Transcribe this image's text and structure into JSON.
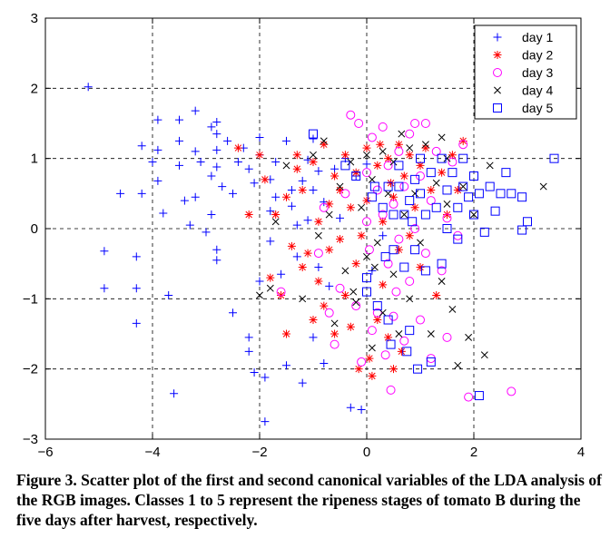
{
  "chart_data": {
    "type": "scatter",
    "title": "",
    "xlabel": "",
    "ylabel": "",
    "xlim": [
      -6,
      4
    ],
    "ylim": [
      -3,
      3
    ],
    "xticks": [
      -6,
      -4,
      -2,
      0,
      2,
      4
    ],
    "yticks": [
      -3,
      -2,
      -1,
      0,
      1,
      2,
      3
    ],
    "xtick_labels": [
      "−6",
      "−4",
      "−2",
      "0",
      "2",
      "4"
    ],
    "ytick_labels": [
      "−3",
      "−2",
      "−1",
      "0",
      "1",
      "2",
      "3"
    ],
    "grid": true,
    "legend_position": "top-right",
    "series": [
      {
        "name": "day 1",
        "marker": "plus",
        "color": "#0000ff",
        "points": [
          [
            -5.2,
            2.02
          ],
          [
            -4.9,
            -0.32
          ],
          [
            -4.9,
            -0.85
          ],
          [
            -4.6,
            0.5
          ],
          [
            -4.3,
            -0.4
          ],
          [
            -4.3,
            -0.85
          ],
          [
            -4.3,
            -1.35
          ],
          [
            -4.2,
            0.5
          ],
          [
            -4.2,
            1.18
          ],
          [
            -4.0,
            0.95
          ],
          [
            -3.9,
            0.68
          ],
          [
            -3.9,
            1.12
          ],
          [
            -3.9,
            1.55
          ],
          [
            -3.8,
            0.22
          ],
          [
            -3.7,
            -0.95
          ],
          [
            -3.6,
            -2.35
          ],
          [
            -3.5,
            1.55
          ],
          [
            -3.5,
            1.25
          ],
          [
            -3.5,
            0.9
          ],
          [
            -3.4,
            0.4
          ],
          [
            -3.3,
            0.05
          ],
          [
            -3.2,
            0.45
          ],
          [
            -3.2,
            1.1
          ],
          [
            -3.2,
            1.68
          ],
          [
            -3.1,
            0.95
          ],
          [
            -3.0,
            -0.05
          ],
          [
            -2.9,
            0.75
          ],
          [
            -2.9,
            1.45
          ],
          [
            -2.9,
            0.2
          ],
          [
            -2.8,
            -0.3
          ],
          [
            -2.8,
            -0.45
          ],
          [
            -2.8,
            1.12
          ],
          [
            -2.8,
            0.88
          ],
          [
            -2.8,
            1.52
          ],
          [
            -2.8,
            1.35
          ],
          [
            -2.7,
            0.6
          ],
          [
            -2.6,
            1.25
          ],
          [
            -2.5,
            -1.2
          ],
          [
            -2.5,
            0.5
          ],
          [
            -2.4,
            0.95
          ],
          [
            -2.3,
            1.15
          ],
          [
            -2.2,
            -1.55
          ],
          [
            -2.2,
            -1.75
          ],
          [
            -2.2,
            0.85
          ],
          [
            -2.1,
            -2.05
          ],
          [
            -2.1,
            0.65
          ],
          [
            -2.0,
            1.05
          ],
          [
            -2.0,
            1.3
          ],
          [
            -2.0,
            -0.75
          ],
          [
            -1.9,
            -2.12
          ],
          [
            -1.9,
            -2.75
          ],
          [
            -1.8,
            0.7
          ],
          [
            -1.8,
            0.25
          ],
          [
            -1.8,
            -0.18
          ],
          [
            -1.7,
            0.95
          ],
          [
            -1.7,
            0.45
          ],
          [
            -1.6,
            -0.65
          ],
          [
            -1.5,
            -1.95
          ],
          [
            -1.5,
            1.25
          ],
          [
            -1.4,
            0.32
          ],
          [
            -1.4,
            0.55
          ],
          [
            -1.3,
            -0.4
          ],
          [
            -1.3,
            0.05
          ],
          [
            -1.2,
            -2.2
          ],
          [
            -1.2,
            0.68
          ],
          [
            -1.1,
            0.98
          ],
          [
            -1.1,
            0.12
          ],
          [
            -1.0,
            -1.55
          ],
          [
            -1.0,
            0.55
          ],
          [
            -1.0,
            1.28
          ],
          [
            -0.9,
            0.82
          ],
          [
            -0.9,
            -0.55
          ],
          [
            -0.8,
            -1.92
          ],
          [
            -0.8,
            0.38
          ],
          [
            -0.7,
            -0.82
          ],
          [
            -0.6,
            0.85
          ],
          [
            -0.5,
            0.15
          ],
          [
            -0.4,
            1.0
          ],
          [
            -0.3,
            -2.55
          ],
          [
            -0.2,
            0.75
          ],
          [
            -0.1,
            -2.58
          ],
          [
            0.0,
            0.92
          ],
          [
            0.1,
            -0.6
          ],
          [
            0.3,
            -0.1
          ]
        ]
      },
      {
        "name": "day 2",
        "marker": "star",
        "color": "#ff0000",
        "points": [
          [
            -2.4,
            1.15
          ],
          [
            -2.2,
            0.2
          ],
          [
            -2.0,
            1.05
          ],
          [
            -1.9,
            0.7
          ],
          [
            -1.8,
            -0.7
          ],
          [
            -1.7,
            0.2
          ],
          [
            -1.6,
            -0.95
          ],
          [
            -1.5,
            0.45
          ],
          [
            -1.5,
            -1.5
          ],
          [
            -1.4,
            -0.25
          ],
          [
            -1.3,
            0.85
          ],
          [
            -1.3,
            1.05
          ],
          [
            -1.2,
            -0.55
          ],
          [
            -1.2,
            0.55
          ],
          [
            -1.1,
            -0.35
          ],
          [
            -1.0,
            -1.3
          ],
          [
            -1.0,
            0.95
          ],
          [
            -0.9,
            0.1
          ],
          [
            -0.9,
            -0.75
          ],
          [
            -0.8,
            1.2
          ],
          [
            -0.8,
            -1.1
          ],
          [
            -0.7,
            0.35
          ],
          [
            -0.7,
            -0.3
          ],
          [
            -0.6,
            0.75
          ],
          [
            -0.6,
            -1.5
          ],
          [
            -0.5,
            -0.15
          ],
          [
            -0.5,
            0.55
          ],
          [
            -0.4,
            1.05
          ],
          [
            -0.4,
            -0.95
          ],
          [
            -0.3,
            0.3
          ],
          [
            -0.3,
            -1.4
          ],
          [
            -0.2,
            0.8
          ],
          [
            -0.2,
            -0.5
          ],
          [
            -0.1,
            -0.1
          ],
          [
            0.0,
            1.15
          ],
          [
            0.0,
            0.4
          ],
          [
            0.05,
            -1.85
          ],
          [
            0.1,
            -2.1
          ],
          [
            0.2,
            0.9
          ],
          [
            0.2,
            -1.3
          ],
          [
            0.3,
            0.1
          ],
          [
            0.3,
            -0.8
          ],
          [
            0.4,
            1.0
          ],
          [
            0.4,
            -1.55
          ],
          [
            0.5,
            0.45
          ],
          [
            0.5,
            -2.0
          ],
          [
            0.6,
            1.2
          ],
          [
            0.6,
            -0.3
          ],
          [
            0.7,
            0.75
          ],
          [
            0.8,
            -0.1
          ],
          [
            0.8,
            1.05
          ],
          [
            0.9,
            0.3
          ],
          [
            1.0,
            -0.55
          ],
          [
            1.0,
            0.9
          ],
          [
            1.1,
            1.15
          ],
          [
            1.2,
            0.55
          ],
          [
            1.3,
            -0.95
          ],
          [
            1.4,
            0.8
          ],
          [
            1.5,
            0.2
          ],
          [
            1.6,
            1.05
          ],
          [
            1.7,
            0.55
          ],
          [
            1.8,
            1.25
          ],
          [
            -0.15,
            -2.0
          ],
          [
            0.25,
            1.2
          ],
          [
            0.45,
            0.65
          ],
          [
            0.65,
            -1.75
          ]
        ]
      },
      {
        "name": "day 3",
        "marker": "circle",
        "color": "#ff00ff",
        "points": [
          [
            -1.6,
            -0.9
          ],
          [
            -0.9,
            -0.35
          ],
          [
            -0.8,
            0.3
          ],
          [
            -0.7,
            -1.2
          ],
          [
            -0.6,
            -1.65
          ],
          [
            -0.5,
            -0.85
          ],
          [
            -0.4,
            0.5
          ],
          [
            -0.3,
            1.62
          ],
          [
            -0.2,
            -1.1
          ],
          [
            -0.1,
            -1.9
          ],
          [
            0.0,
            0.1
          ],
          [
            0.0,
            0.8
          ],
          [
            0.05,
            -0.3
          ],
          [
            0.1,
            1.3
          ],
          [
            0.1,
            -1.45
          ],
          [
            0.2,
            0.55
          ],
          [
            0.2,
            -1.2
          ],
          [
            0.3,
            0.2
          ],
          [
            0.3,
            1.45
          ],
          [
            0.35,
            -1.8
          ],
          [
            0.4,
            -0.5
          ],
          [
            0.4,
            0.9
          ],
          [
            0.45,
            -2.3
          ],
          [
            0.5,
            0.35
          ],
          [
            0.5,
            -1.25
          ],
          [
            0.6,
            1.1
          ],
          [
            0.6,
            -0.15
          ],
          [
            0.7,
            0.6
          ],
          [
            0.7,
            -1.6
          ],
          [
            0.8,
            1.35
          ],
          [
            0.8,
            -0.75
          ],
          [
            0.9,
            0.0
          ],
          [
            0.9,
            1.5
          ],
          [
            1.0,
            -1.3
          ],
          [
            1.0,
            0.75
          ],
          [
            1.1,
            1.5
          ],
          [
            1.1,
            -0.35
          ],
          [
            1.2,
            0.4
          ],
          [
            1.2,
            -1.85
          ],
          [
            1.3,
            1.1
          ],
          [
            1.4,
            -0.6
          ],
          [
            1.5,
            0.15
          ],
          [
            1.5,
            -1.55
          ],
          [
            1.6,
            0.95
          ],
          [
            1.7,
            -0.1
          ],
          [
            1.8,
            1.2
          ],
          [
            1.9,
            -2.4
          ],
          [
            2.7,
            -2.32
          ],
          [
            -0.15,
            1.5
          ],
          [
            0.55,
            -0.9
          ]
        ]
      },
      {
        "name": "day 4",
        "marker": "x",
        "color": "#000000",
        "points": [
          [
            -2.0,
            -0.95
          ],
          [
            -1.8,
            -0.85
          ],
          [
            -1.7,
            0.1
          ],
          [
            -1.5,
            0.9
          ],
          [
            -1.2,
            -1.0
          ],
          [
            -1.0,
            1.05
          ],
          [
            -0.9,
            -0.1
          ],
          [
            -0.8,
            1.25
          ],
          [
            -0.7,
            0.2
          ],
          [
            -0.6,
            -1.35
          ],
          [
            -0.5,
            0.6
          ],
          [
            -0.4,
            -0.6
          ],
          [
            -0.3,
            0.95
          ],
          [
            -0.2,
            -1.05
          ],
          [
            -0.1,
            0.3
          ],
          [
            0.0,
            -0.4
          ],
          [
            0.0,
            1.05
          ],
          [
            0.1,
            0.7
          ],
          [
            0.1,
            -1.7
          ],
          [
            0.2,
            -0.2
          ],
          [
            0.3,
            1.1
          ],
          [
            0.3,
            -1.2
          ],
          [
            0.4,
            0.5
          ],
          [
            0.5,
            -0.65
          ],
          [
            0.5,
            0.95
          ],
          [
            0.6,
            -1.5
          ],
          [
            0.7,
            0.2
          ],
          [
            0.8,
            1.15
          ],
          [
            0.8,
            -1.0
          ],
          [
            0.9,
            0.5
          ],
          [
            1.0,
            -0.2
          ],
          [
            1.1,
            1.2
          ],
          [
            1.2,
            -1.5
          ],
          [
            1.3,
            0.65
          ],
          [
            1.4,
            -0.75
          ],
          [
            1.5,
            0.35
          ],
          [
            1.5,
            1.0
          ],
          [
            1.6,
            -1.15
          ],
          [
            1.8,
            0.6
          ],
          [
            1.9,
            -1.55
          ],
          [
            2.0,
            0.2
          ],
          [
            2.2,
            -1.8
          ],
          [
            2.3,
            0.9
          ],
          [
            3.3,
            0.6
          ],
          [
            1.4,
            1.3
          ],
          [
            0.65,
            1.35
          ],
          [
            -0.25,
            -0.9
          ],
          [
            0.15,
            -0.55
          ],
          [
            1.7,
            -1.95
          ]
        ]
      },
      {
        "name": "day 5",
        "marker": "square",
        "color": "#0000ff",
        "points": [
          [
            -1.0,
            1.35
          ],
          [
            -0.4,
            0.9
          ],
          [
            -0.2,
            0.75
          ],
          [
            0.0,
            -0.7
          ],
          [
            0.0,
            -0.9
          ],
          [
            0.1,
            0.45
          ],
          [
            0.15,
            0.6
          ],
          [
            0.2,
            -1.1
          ],
          [
            0.3,
            0.3
          ],
          [
            0.4,
            -1.3
          ],
          [
            0.4,
            0.6
          ],
          [
            0.45,
            -1.65
          ],
          [
            0.5,
            -0.3
          ],
          [
            0.5,
            0.2
          ],
          [
            0.6,
            0.6
          ],
          [
            0.6,
            0.9
          ],
          [
            0.7,
            -0.55
          ],
          [
            0.7,
            0.2
          ],
          [
            0.75,
            -1.75
          ],
          [
            0.8,
            0.4
          ],
          [
            0.8,
            -1.45
          ],
          [
            0.9,
            0.7
          ],
          [
            0.9,
            -0.3
          ],
          [
            0.95,
            -2.0
          ],
          [
            1.0,
            0.5
          ],
          [
            1.0,
            1.0
          ],
          [
            1.1,
            -0.6
          ],
          [
            1.1,
            0.2
          ],
          [
            1.2,
            0.8
          ],
          [
            1.2,
            -1.9
          ],
          [
            1.3,
            0.3
          ],
          [
            1.4,
            -0.5
          ],
          [
            1.4,
            1.0
          ],
          [
            1.5,
            0.55
          ],
          [
            1.5,
            0.0
          ],
          [
            1.6,
            0.8
          ],
          [
            1.7,
            0.3
          ],
          [
            1.7,
            -0.15
          ],
          [
            1.8,
            0.6
          ],
          [
            1.8,
            1.0
          ],
          [
            1.9,
            0.45
          ],
          [
            2.0,
            0.2
          ],
          [
            2.0,
            0.75
          ],
          [
            2.1,
            0.5
          ],
          [
            2.2,
            -0.05
          ],
          [
            2.3,
            0.6
          ],
          [
            2.4,
            0.25
          ],
          [
            2.5,
            0.5
          ],
          [
            2.6,
            0.8
          ],
          [
            2.7,
            0.5
          ],
          [
            2.9,
            -0.02
          ],
          [
            2.9,
            0.45
          ],
          [
            3.0,
            0.1
          ],
          [
            3.5,
            1.0
          ],
          [
            2.1,
            -2.38
          ],
          [
            0.35,
            -0.4
          ],
          [
            0.85,
            0.1
          ]
        ]
      }
    ]
  },
  "caption": "Figure 3. Scatter plot of the first and second canonical variables of the LDA analysis of the RGB images. Classes 1 to 5 represent the ripeness stages of tomato B during the five days after harvest, respectively."
}
